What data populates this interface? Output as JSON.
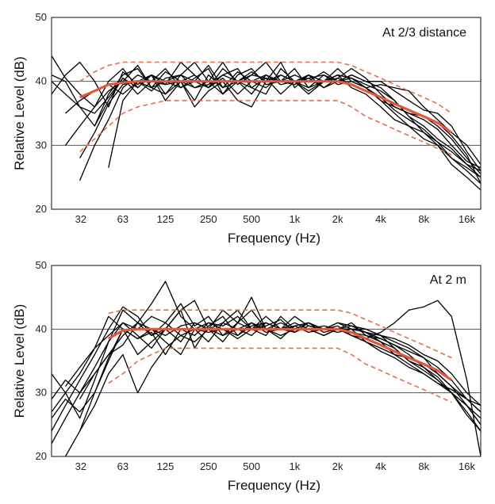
{
  "chart_data": [
    {
      "type": "line",
      "title": "At 2/3 distance",
      "xlabel": "Frequency (Hz)",
      "ylabel": "Relative Level (dB)",
      "x_scale": "log",
      "xticks": [
        {
          "label": "32",
          "value": 32
        },
        {
          "label": "63",
          "value": 63
        },
        {
          "label": "125",
          "value": 125
        },
        {
          "label": "250",
          "value": 250
        },
        {
          "label": "500",
          "value": 500
        },
        {
          "label": "1k",
          "value": 1000
        },
        {
          "label": "2k",
          "value": 2000
        },
        {
          "label": "4k",
          "value": 4000
        },
        {
          "label": "8k",
          "value": 8000
        },
        {
          "label": "16k",
          "value": 16000
        }
      ],
      "yticks": [
        20,
        30,
        40,
        50
      ],
      "ylim": [
        20,
        50
      ],
      "xlim": [
        20,
        20000
      ],
      "grid": "horizontal at 30 and 40",
      "x": [
        20,
        25,
        31.5,
        40,
        50,
        63,
        80,
        100,
        125,
        160,
        200,
        250,
        315,
        400,
        500,
        630,
        800,
        1000,
        1250,
        1600,
        2000,
        2500,
        3150,
        4000,
        5000,
        6300,
        8000,
        10000,
        12500,
        16000,
        20000
      ],
      "measured_series": [
        {
          "values": [
            44,
            40.5,
            38,
            36,
            40,
            42,
            39,
            41,
            38,
            40,
            36,
            38.5,
            40,
            37,
            36,
            40,
            41,
            40,
            38,
            40,
            41,
            40.5,
            39,
            37,
            35,
            33,
            31,
            30,
            28,
            26,
            24
          ]
        },
        {
          "values": [
            41,
            40,
            36,
            33,
            38,
            41,
            42,
            39,
            40,
            41,
            40,
            39,
            41,
            42,
            39,
            38,
            42,
            40,
            41,
            39,
            40,
            41,
            40,
            39,
            37,
            34.5,
            33,
            31,
            29.5,
            27,
            25
          ]
        },
        {
          "values": [
            40,
            38,
            36,
            35,
            37.5,
            40.5,
            38,
            40,
            42,
            39,
            40.5,
            42,
            38,
            40,
            41,
            43,
            40,
            39.5,
            41,
            40,
            41,
            39,
            38,
            36,
            34,
            33,
            32,
            30,
            27,
            25,
            23
          ]
        },
        {
          "values": [
            null,
            null,
            24.5,
            30,
            34,
            39,
            41,
            40,
            39.5,
            43,
            41,
            39,
            42,
            40,
            38,
            41,
            40,
            42,
            39,
            41,
            40,
            40.5,
            39.5,
            38.5,
            37,
            34.5,
            32,
            30.5,
            28,
            26.5,
            25
          ]
        },
        {
          "values": [
            null,
            null,
            null,
            null,
            26.5,
            37,
            40,
            39,
            41.5,
            40,
            37,
            41,
            39,
            41.5,
            40,
            39,
            41,
            40,
            38.5,
            40,
            42,
            40,
            39,
            37.5,
            35.5,
            34,
            32.5,
            30.5,
            29,
            27,
            26
          ]
        },
        {
          "values": [
            null,
            30,
            33,
            36,
            38.5,
            40,
            42.5,
            39,
            38,
            41,
            43,
            40,
            38,
            41,
            42,
            39.5,
            40,
            41,
            40,
            41.5,
            40,
            41,
            40,
            40,
            38.5,
            37,
            35.5,
            35,
            33,
            29,
            26
          ]
        },
        {
          "values": [
            38,
            41,
            43,
            40,
            36,
            41.5,
            39.5,
            41,
            40,
            39,
            40,
            42.5,
            39,
            40,
            41.5,
            40,
            43,
            39,
            41,
            40,
            40.5,
            42,
            40.5,
            38,
            36,
            35,
            34,
            32.5,
            30,
            27.5,
            26.5
          ]
        },
        {
          "values": [
            null,
            null,
            28,
            32,
            36.5,
            39.5,
            40,
            41,
            39.5,
            40,
            41,
            39,
            40.5,
            38,
            40,
            41,
            39.5,
            40,
            40.5,
            41,
            39.5,
            40,
            39,
            39.5,
            39,
            38.5,
            36,
            34,
            32,
            30,
            27
          ]
        },
        {
          "values": [
            null,
            35,
            37,
            38.5,
            39.5,
            38,
            40,
            38.5,
            40.5,
            41,
            39,
            39.5,
            41,
            40,
            39,
            40.5,
            40,
            39.5,
            40.5,
            39,
            40.5,
            39.5,
            38.5,
            37.5,
            36.5,
            35.5,
            34.5,
            33,
            31,
            28,
            25.5
          ]
        },
        {
          "values": [
            null,
            null,
            null,
            33,
            37,
            40.5,
            39,
            41,
            37,
            40,
            39,
            40,
            43,
            39.5,
            41,
            40.5,
            38,
            40,
            39,
            40,
            41,
            40.5,
            39,
            37,
            36,
            35,
            34.5,
            33.5,
            31.5,
            28.5,
            24
          ]
        }
      ],
      "average_series": {
        "x": [
          31.5,
          40,
          50,
          63,
          80,
          100,
          125,
          250,
          500,
          1000,
          2000,
          2500,
          3150,
          4000,
          5000,
          6300,
          8000,
          10000,
          12500
        ],
        "values": [
          37.5,
          38.5,
          39.5,
          39.8,
          40,
          40,
          40,
          40,
          40,
          40,
          40,
          39.5,
          38.5,
          37.5,
          36.5,
          35.5,
          34.5,
          33.5,
          32
        ]
      },
      "upper_tolerance": {
        "x": [
          31.5,
          40,
          50,
          63,
          125,
          250,
          500,
          1000,
          2000,
          2500,
          3150,
          4000,
          5000,
          6300,
          8000,
          10000,
          12500
        ],
        "values": [
          40,
          41.5,
          42.5,
          43,
          43,
          43,
          43,
          43,
          43,
          42.5,
          41.5,
          40.5,
          39.5,
          38.5,
          37.5,
          36.5,
          35
        ]
      },
      "lower_tolerance": {
        "x": [
          31.5,
          40,
          50,
          63,
          80,
          125,
          250,
          500,
          1000,
          2000,
          2500,
          3150,
          4000,
          5000,
          6300,
          8000,
          10000,
          12500
        ],
        "values": [
          29,
          31,
          33,
          35,
          36,
          37,
          37,
          37,
          37,
          37,
          36,
          34.5,
          33.5,
          32.5,
          31.5,
          30.5,
          29.5,
          28.5
        ]
      },
      "colors": {
        "measured": "#000000",
        "average": "#e05a3a",
        "tolerance": "#e0714f"
      }
    },
    {
      "type": "line",
      "title": "At 2 m",
      "xlabel": "Frequency (Hz)",
      "ylabel": "Relative Level (dB)",
      "x_scale": "log",
      "xticks": [
        {
          "label": "32",
          "value": 32
        },
        {
          "label": "63",
          "value": 63
        },
        {
          "label": "125",
          "value": 125
        },
        {
          "label": "250",
          "value": 250
        },
        {
          "label": "500",
          "value": 500
        },
        {
          "label": "1k",
          "value": 1000
        },
        {
          "label": "2k",
          "value": 2000
        },
        {
          "label": "4k",
          "value": 4000
        },
        {
          "label": "8k",
          "value": 8000
        },
        {
          "label": "16k",
          "value": 16000
        }
      ],
      "yticks": [
        20,
        30,
        40,
        50
      ],
      "ylim": [
        20,
        50
      ],
      "xlim": [
        20,
        20000
      ],
      "grid": "horizontal at 30 and 40",
      "x": [
        20,
        25,
        31.5,
        40,
        50,
        63,
        80,
        100,
        125,
        160,
        200,
        250,
        315,
        400,
        500,
        630,
        800,
        1000,
        1250,
        1600,
        2000,
        2500,
        3150,
        4000,
        5000,
        6300,
        8000,
        10000,
        12500,
        16000,
        20000
      ],
      "measured_series": [
        {
          "values": [
            33,
            30,
            26,
            32,
            38,
            43,
            41,
            44,
            47.5,
            42,
            40,
            38,
            41,
            43,
            40,
            39,
            42,
            40,
            41,
            39.5,
            40,
            41,
            39,
            38,
            37,
            35,
            34,
            32,
            30,
            27,
            24
          ]
        },
        {
          "values": [
            24,
            28,
            32,
            36,
            40,
            43.5,
            42,
            39,
            41,
            44,
            40.5,
            42,
            39,
            41,
            43,
            40,
            38.5,
            40.5,
            41,
            40,
            40.5,
            39,
            38.5,
            39.5,
            41,
            43,
            43.5,
            44.5,
            42,
            32,
            20
          ]
        },
        {
          "values": [
            22,
            26,
            30,
            33,
            36,
            37.5,
            41,
            39,
            40,
            38,
            41,
            40,
            43,
            41,
            40,
            42,
            40,
            41,
            40,
            39,
            40,
            40.5,
            40,
            39,
            37,
            35,
            33.5,
            32,
            30,
            28,
            25
          ]
        },
        {
          "values": [
            null,
            20,
            24,
            30,
            35,
            40,
            38.5,
            39.5,
            36,
            40,
            39,
            41,
            40,
            39,
            40.5,
            41,
            40,
            39.5,
            41,
            40,
            41,
            40,
            38,
            36.5,
            35.5,
            34,
            33,
            31.5,
            30,
            26.5,
            24
          ]
        },
        {
          "values": [
            27,
            30,
            33,
            37,
            42,
            40,
            36,
            38,
            40,
            43,
            37,
            40.5,
            42,
            39,
            41,
            39.5,
            40,
            42,
            40.5,
            40,
            39.5,
            40,
            40,
            39,
            38,
            37,
            35.5,
            33,
            31,
            28,
            26
          ]
        },
        {
          "values": [
            null,
            null,
            29,
            33,
            36,
            39,
            41,
            40,
            38,
            36,
            40,
            39.5,
            40,
            38.5,
            40,
            41,
            40,
            40,
            40,
            40.5,
            40,
            39,
            38,
            37,
            36,
            35.5,
            34.5,
            33,
            31,
            29,
            27
          ]
        },
        {
          "values": [
            null,
            31,
            34,
            37,
            39,
            41,
            40,
            42,
            41,
            39,
            40,
            41,
            40.5,
            42,
            40,
            40.5,
            41.5,
            39.5,
            40.5,
            40,
            40,
            40,
            39.5,
            38.5,
            37.5,
            36,
            34,
            32.5,
            30,
            28,
            25
          ]
        },
        {
          "values": [
            26,
            29,
            27,
            30,
            35.5,
            40,
            38.5,
            40,
            39,
            40.5,
            41,
            40,
            39,
            40,
            41,
            40,
            39,
            40,
            40,
            39,
            40,
            39.5,
            39,
            38.5,
            37.5,
            36.5,
            35.5,
            34,
            32,
            29,
            27
          ]
        },
        {
          "values": [
            null,
            null,
            24,
            28,
            33,
            36,
            30,
            34,
            37,
            39,
            38,
            40,
            41,
            40,
            39,
            41,
            40,
            40.5,
            39.5,
            40,
            41,
            40.5,
            39.5,
            38,
            36,
            34.5,
            33,
            31.5,
            30.5,
            29,
            28
          ]
        },
        {
          "values": [
            29,
            32,
            30,
            34,
            38,
            41,
            39,
            37,
            40,
            43,
            44.5,
            40,
            38,
            41,
            45,
            40,
            41,
            40,
            41,
            40,
            40,
            40,
            39.5,
            39,
            38.5,
            37.5,
            36,
            35,
            33,
            30,
            28
          ]
        }
      ],
      "average_series": {
        "x": [
          50,
          63,
          80,
          100,
          125,
          250,
          500,
          1000,
          2000,
          2500,
          3150,
          4000,
          5000,
          6300,
          8000,
          10000,
          12500
        ],
        "values": [
          38.5,
          39.8,
          40,
          40,
          40,
          40,
          40,
          40,
          40,
          39.5,
          38.5,
          37.5,
          36.5,
          35.5,
          34.5,
          33.5,
          32
        ]
      },
      "upper_tolerance": {
        "x": [
          50,
          63,
          125,
          250,
          500,
          1000,
          2000,
          2500,
          3150,
          4000,
          5000,
          6300,
          8000,
          10000,
          12500
        ],
        "values": [
          42.5,
          43,
          43,
          43,
          43,
          43,
          43,
          42.5,
          41.5,
          40.5,
          39.5,
          38.5,
          37.5,
          36.5,
          35.5
        ]
      },
      "lower_tolerance": {
        "x": [
          50,
          63,
          80,
          125,
          250,
          500,
          1000,
          2000,
          2500,
          3150,
          4000,
          5000,
          6300,
          8000,
          10000,
          12500
        ],
        "values": [
          31.5,
          33,
          35,
          37,
          37,
          37,
          37,
          37,
          36,
          34.5,
          33.5,
          32.5,
          31.5,
          30.5,
          29.5,
          28.5
        ]
      },
      "colors": {
        "measured": "#000000",
        "average": "#e05a3a",
        "tolerance": "#e0714f"
      }
    }
  ]
}
